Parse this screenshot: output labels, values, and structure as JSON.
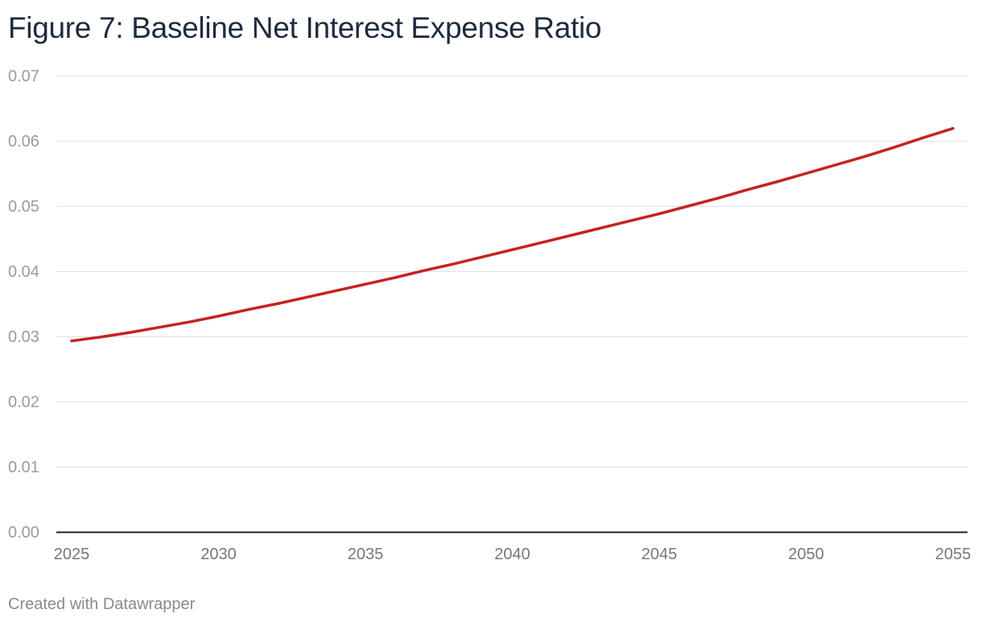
{
  "header": {
    "title": "Figure 7: Baseline Net Interest Expense Ratio"
  },
  "footer": {
    "credit": "Created with Datawrapper"
  },
  "colors": {
    "series": "#c62221",
    "gridline": "#e1e1e1",
    "baseline": "#222222",
    "tick_label": "#9b9b9b",
    "x_tick_label": "#777777",
    "title": "#1d2b3c"
  },
  "chart_data": {
    "type": "line",
    "title": "Figure 7: Baseline Net Interest Expense Ratio",
    "xlabel": "",
    "ylabel": "",
    "xlim": [
      2025,
      2055
    ],
    "ylim": [
      0,
      0.07
    ],
    "grid": true,
    "legend": "none",
    "x_ticks": [
      2025,
      2030,
      2035,
      2040,
      2045,
      2050,
      2055
    ],
    "x_tick_labels": [
      "2025",
      "2030",
      "2035",
      "2040",
      "2045",
      "2050",
      "2055"
    ],
    "y_ticks": [
      0,
      0.01,
      0.02,
      0.03,
      0.04,
      0.05,
      0.06,
      0.07
    ],
    "y_tick_labels": [
      "0.00",
      "0.01",
      "0.02",
      "0.03",
      "0.04",
      "0.05",
      "0.06",
      "0.07"
    ],
    "series": [
      {
        "color": "#c62221",
        "x": [
          2025,
          2026,
          2027,
          2028,
          2029,
          2030,
          2031,
          2032,
          2033,
          2034,
          2035,
          2036,
          2037,
          2038,
          2039,
          2040,
          2041,
          2042,
          2043,
          2044,
          2045,
          2046,
          2047,
          2048,
          2049,
          2050,
          2051,
          2052,
          2053,
          2054,
          2055
        ],
        "values": [
          0.0293,
          0.0299,
          0.0306,
          0.0314,
          0.0322,
          0.0331,
          0.0341,
          0.035,
          0.036,
          0.037,
          0.038,
          0.039,
          0.0401,
          0.0411,
          0.0422,
          0.0433,
          0.0444,
          0.0455,
          0.0466,
          0.0477,
          0.0488,
          0.05,
          0.0512,
          0.0525,
          0.0537,
          0.055,
          0.0563,
          0.0576,
          0.059,
          0.0605,
          0.0619
        ]
      }
    ]
  }
}
